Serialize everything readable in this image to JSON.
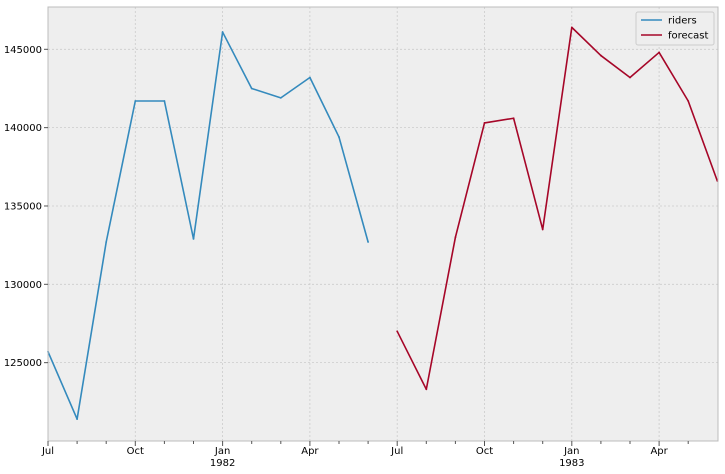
{
  "chart_data": {
    "type": "line",
    "title": "",
    "xlabel": "",
    "ylabel": "",
    "grid": true,
    "legend_position": "top-right",
    "x_range": [
      "1981-07",
      "1983-06"
    ],
    "ylim": [
      120000,
      147700
    ],
    "y_ticks": [
      125000,
      130000,
      135000,
      140000,
      145000
    ],
    "y_tick_labels": [
      "125000",
      "130000",
      "135000",
      "140000",
      "145000"
    ],
    "x_ticks": [
      {
        "month": "1981-07",
        "label": "Jul",
        "sublabel": "",
        "major": true
      },
      {
        "month": "1981-08",
        "label": "",
        "sublabel": "",
        "major": false
      },
      {
        "month": "1981-09",
        "label": "",
        "sublabel": "",
        "major": false
      },
      {
        "month": "1981-10",
        "label": "Oct",
        "sublabel": "",
        "major": true
      },
      {
        "month": "1981-11",
        "label": "",
        "sublabel": "",
        "major": false
      },
      {
        "month": "1981-12",
        "label": "",
        "sublabel": "",
        "major": false
      },
      {
        "month": "1982-01",
        "label": "Jan",
        "sublabel": "1982",
        "major": true
      },
      {
        "month": "1982-02",
        "label": "",
        "sublabel": "",
        "major": false
      },
      {
        "month": "1982-03",
        "label": "",
        "sublabel": "",
        "major": false
      },
      {
        "month": "1982-04",
        "label": "Apr",
        "sublabel": "",
        "major": true
      },
      {
        "month": "1982-05",
        "label": "",
        "sublabel": "",
        "major": false
      },
      {
        "month": "1982-06",
        "label": "",
        "sublabel": "",
        "major": false
      },
      {
        "month": "1982-07",
        "label": "Jul",
        "sublabel": "",
        "major": true
      },
      {
        "month": "1982-08",
        "label": "",
        "sublabel": "",
        "major": false
      },
      {
        "month": "1982-09",
        "label": "",
        "sublabel": "",
        "major": false
      },
      {
        "month": "1982-10",
        "label": "Oct",
        "sublabel": "",
        "major": true
      },
      {
        "month": "1982-11",
        "label": "",
        "sublabel": "",
        "major": false
      },
      {
        "month": "1982-12",
        "label": "",
        "sublabel": "",
        "major": false
      },
      {
        "month": "1983-01",
        "label": "Jan",
        "sublabel": "1983",
        "major": true
      },
      {
        "month": "1983-02",
        "label": "",
        "sublabel": "",
        "major": false
      },
      {
        "month": "1983-03",
        "label": "",
        "sublabel": "",
        "major": false
      },
      {
        "month": "1983-04",
        "label": "Apr",
        "sublabel": "",
        "major": true
      },
      {
        "month": "1983-05",
        "label": "",
        "sublabel": "",
        "major": false
      }
    ],
    "series": [
      {
        "name": "riders",
        "color": "#348abd",
        "points": [
          {
            "x": "1981-07",
            "y": 125700
          },
          {
            "x": "1981-08",
            "y": 121400
          },
          {
            "x": "1981-09",
            "y": 132700
          },
          {
            "x": "1981-10",
            "y": 141700
          },
          {
            "x": "1981-11",
            "y": 141700
          },
          {
            "x": "1981-12",
            "y": 132900
          },
          {
            "x": "1982-01",
            "y": 146100
          },
          {
            "x": "1982-02",
            "y": 142500
          },
          {
            "x": "1982-03",
            "y": 141900
          },
          {
            "x": "1982-04",
            "y": 143200
          },
          {
            "x": "1982-05",
            "y": 139400
          },
          {
            "x": "1982-06",
            "y": 132700
          }
        ]
      },
      {
        "name": "forecast",
        "color": "#a60628",
        "points": [
          {
            "x": "1982-07",
            "y": 127000
          },
          {
            "x": "1982-08",
            "y": 123300
          },
          {
            "x": "1982-09",
            "y": 133000
          },
          {
            "x": "1982-10",
            "y": 140300
          },
          {
            "x": "1982-11",
            "y": 140600
          },
          {
            "x": "1982-12",
            "y": 133500
          },
          {
            "x": "1983-01",
            "y": 146400
          },
          {
            "x": "1983-02",
            "y": 144600
          },
          {
            "x": "1983-03",
            "y": 143200
          },
          {
            "x": "1983-04",
            "y": 144800
          },
          {
            "x": "1983-05",
            "y": 141700
          },
          {
            "x": "1983-06",
            "y": 136600
          }
        ]
      }
    ]
  }
}
